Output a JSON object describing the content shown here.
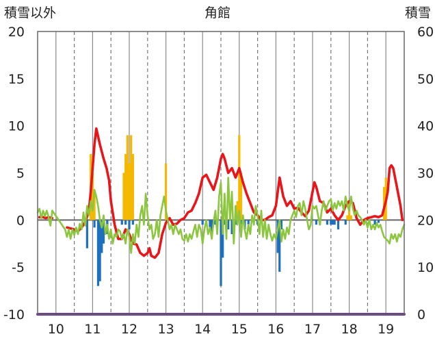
{
  "chart_data": {
    "type": "bar+line",
    "title": "角館",
    "ylabel_left": "積雪以外",
    "ylabel_right": "積雪",
    "ylim_left": [
      -10,
      20
    ],
    "yticks_left": [
      "-10",
      "-5",
      "0",
      "5",
      "10",
      "15",
      "20"
    ],
    "ylim_right": [
      0,
      60
    ],
    "yticks_right": [
      "0",
      "10",
      "20",
      "30",
      "40",
      "50",
      "60"
    ],
    "xlim": [
      9.5,
      19.5
    ],
    "xticks": [
      "10",
      "11",
      "12",
      "13",
      "14",
      "15",
      "16",
      "17",
      "18",
      "19"
    ],
    "grid": "vertical-dashed",
    "legend": "none",
    "series_colors": {
      "red_line": "#e8151b",
      "green_line": "#8cc63f",
      "orange_bars": "#f5b800",
      "blue_bars": "#1f6fbf",
      "purple_line": "#7030a0"
    },
    "series": [
      {
        "type": "line",
        "color_key": "red_line",
        "axis": "left",
        "x": [
          9.55,
          9.65,
          9.72,
          9.8,
          9.9,
          10.05,
          10.3,
          10.5,
          10.6,
          10.7,
          10.8,
          10.9,
          10.95,
          11.0,
          11.05,
          11.1,
          11.2,
          11.3,
          11.38,
          11.45,
          11.5,
          11.6,
          11.7,
          11.8,
          11.9,
          12.0,
          12.1,
          12.2,
          12.3,
          12.4,
          12.5,
          12.55,
          12.6,
          12.7,
          12.8,
          12.9,
          13.0,
          13.1,
          13.2,
          13.3,
          13.4,
          13.5,
          13.6,
          13.7,
          13.8,
          13.9,
          14.0,
          14.1,
          14.2,
          14.3,
          14.4,
          14.5,
          14.55,
          14.6,
          14.7,
          14.8,
          14.9,
          15.0,
          15.1,
          15.2,
          15.3,
          15.4,
          15.5,
          15.6,
          15.7,
          15.8,
          15.9,
          16.0,
          16.05,
          16.1,
          16.2,
          16.3,
          16.4,
          16.5,
          16.6,
          16.7,
          16.8,
          16.9,
          17.0,
          17.05,
          17.1,
          17.2,
          17.3,
          17.4,
          17.5,
          17.6,
          17.7,
          17.8,
          17.9,
          18.0,
          18.1,
          18.2,
          18.3,
          18.4,
          18.5,
          18.6,
          18.7,
          18.8,
          18.9,
          19.0,
          19.05,
          19.1,
          19.15,
          19.2,
          19.3,
          19.4,
          19.45
        ],
        "y": [
          0.3,
          0.3,
          0.2,
          0.3,
          0.2,
          null,
          -0.8,
          -1.0,
          -1.2,
          -0.8,
          -0.2,
          1.0,
          3.0,
          5.5,
          8.0,
          9.7,
          8.0,
          6.5,
          5.5,
          4.2,
          2.0,
          -0.5,
          -2.0,
          -2.0,
          -1.0,
          -1.5,
          -2.5,
          -2.6,
          -3.5,
          -3.8,
          -3.5,
          -3.0,
          -3.8,
          -4.0,
          -3.5,
          -1.5,
          -0.3,
          0.2,
          -0.5,
          -0.4,
          0.0,
          0.2,
          0.8,
          1.0,
          1.8,
          2.8,
          4.5,
          4.8,
          4.0,
          3.2,
          4.5,
          6.5,
          7.0,
          6.5,
          5.0,
          5.5,
          4.5,
          5.5,
          4.0,
          2.8,
          1.8,
          0.8,
          0.5,
          0.0,
          0.0,
          0.3,
          0.5,
          1.5,
          3.0,
          4.5,
          2.5,
          1.5,
          2.0,
          1.2,
          1.3,
          0.8,
          0.4,
          1.0,
          3.0,
          4.0,
          3.5,
          2.0,
          1.8,
          0.8,
          1.2,
          0.5,
          0.0,
          0.5,
          1.5,
          2.0,
          1.8,
          0.2,
          -0.5,
          0.0,
          0.2,
          0.3,
          0.4,
          0.3,
          0.5,
          2.0,
          3.0,
          5.5,
          5.8,
          5.5,
          3.5,
          1.5,
          0.0
        ]
      },
      {
        "type": "line",
        "color_key": "green_line",
        "axis": "left",
        "x": [
          9.5,
          9.55,
          9.6,
          9.65,
          9.7,
          9.75,
          9.8,
          9.85,
          9.9,
          10.25,
          10.3,
          10.35,
          10.4,
          10.45,
          10.5,
          10.55,
          10.6,
          10.65,
          10.7,
          10.75,
          10.8,
          10.85,
          10.9,
          10.95,
          11.0,
          11.05,
          11.1,
          11.15,
          11.2,
          11.25,
          11.3,
          11.35,
          11.4,
          11.45,
          11.5,
          11.55,
          11.6,
          11.65,
          11.7,
          11.75,
          11.8,
          11.85,
          11.9,
          11.95,
          12.0,
          12.05,
          12.1,
          12.15,
          12.2,
          12.25,
          12.3,
          12.35,
          12.4,
          12.45,
          12.5,
          12.55,
          12.6,
          12.65,
          12.7,
          12.75,
          12.8,
          12.85,
          12.9,
          12.95,
          13.0,
          13.05,
          13.1,
          13.15,
          13.2,
          13.25,
          13.3,
          13.35,
          13.4,
          13.45,
          13.5,
          13.55,
          13.6,
          13.65,
          13.7,
          13.75,
          13.8,
          13.85,
          13.9,
          13.95,
          14.0,
          14.05,
          14.1,
          14.15,
          14.2,
          14.25,
          14.3,
          14.35,
          14.4,
          14.45,
          14.5,
          14.55,
          14.6,
          14.65,
          14.7,
          14.75,
          14.8,
          14.85,
          14.9,
          14.95,
          15.0,
          15.05,
          15.1,
          15.15,
          15.2,
          15.25,
          15.3,
          15.35,
          15.4,
          15.45,
          15.5,
          15.55,
          15.6,
          15.65,
          15.7,
          15.75,
          15.8,
          15.85,
          15.9,
          15.95,
          16.0,
          16.05,
          16.1,
          16.15,
          16.2,
          16.25,
          16.3,
          16.35,
          16.4,
          16.45,
          16.5,
          16.55,
          16.6,
          16.65,
          16.7,
          16.75,
          16.8,
          16.85,
          16.9,
          16.95,
          17.0,
          17.05,
          17.1,
          17.15,
          17.2,
          17.25,
          17.3,
          17.35,
          17.4,
          17.45,
          17.5,
          17.55,
          17.6,
          17.65,
          17.7,
          17.75,
          17.8,
          17.85,
          17.9,
          17.95,
          18.0,
          18.05,
          18.1,
          18.15,
          18.2,
          18.25,
          18.3,
          18.35,
          18.4,
          18.45,
          18.5,
          18.55,
          18.6,
          18.65,
          18.7,
          18.75,
          18.8,
          18.85,
          18.9,
          18.95,
          19.0,
          19.05,
          19.1,
          19.15,
          19.2,
          19.25,
          19.3,
          19.35,
          19.4,
          19.45,
          19.5
        ],
        "y": [
          0.8,
          1.2,
          0.2,
          1.0,
          0.4,
          1.0,
          0.3,
          -0.6,
          1.0,
          -1.0,
          -1.8,
          -1.0,
          -2.0,
          -1.0,
          -1.6,
          -0.8,
          -1.5,
          -0.4,
          -1.0,
          0.8,
          -0.6,
          1.5,
          0.5,
          2.0,
          1.0,
          3.2,
          2.5,
          1.5,
          0.0,
          -0.8,
          0.5,
          -1.5,
          -0.5,
          -2.0,
          -1.0,
          -2.5,
          -1.5,
          -1.8,
          -1.0,
          -1.2,
          -2.0,
          -1.5,
          -2.5,
          -1.0,
          -1.8,
          -3.5,
          -1.5,
          -2.5,
          -0.5,
          -1.8,
          0.5,
          1.5,
          -0.5,
          2.8,
          0.5,
          -1.0,
          -0.5,
          -2.0,
          -1.5,
          0.0,
          -1.8,
          0.5,
          1.5,
          2.5,
          1.0,
          0.0,
          -1.0,
          -0.5,
          -1.5,
          -0.5,
          -1.0,
          -1.5,
          -1.0,
          -2.0,
          -2.2,
          -1.5,
          -2.3,
          -1.5,
          -2.0,
          -1.2,
          -0.5,
          -1.8,
          -0.5,
          -1.0,
          -2.5,
          -1.0,
          0.0,
          -1.5,
          -0.8,
          -2.0,
          -0.2,
          1.0,
          -1.5,
          2.5,
          4.0,
          -1.5,
          2.8,
          -2.0,
          4.5,
          0.0,
          3.0,
          -2.5,
          1.5,
          -0.5,
          1.0,
          -1.8,
          0.5,
          -1.0,
          -2.0,
          -0.5,
          -1.5,
          0.5,
          -0.5,
          1.5,
          0.5,
          -1.5,
          1.0,
          -1.8,
          0.0,
          -2.0,
          -0.5,
          -1.5,
          -2.2,
          -1.5,
          -2.0,
          -1.0,
          0.0,
          -2.3,
          -1.0,
          -2.0,
          -0.8,
          -1.5,
          0.0,
          0.5,
          1.0,
          0.3,
          1.5,
          1.8,
          0.5,
          2.0,
          1.2,
          0.0,
          -1.0,
          -0.5,
          1.5,
          1.2,
          1.5,
          0.5,
          -0.5,
          1.0,
          2.0,
          1.0,
          1.5,
          2.0,
          2.2,
          1.0,
          1.8,
          1.2,
          2.0,
          1.5,
          2.0,
          1.0,
          2.5,
          1.5,
          1.0,
          2.5,
          1.2,
          0.5,
          1.0,
          0.5,
          0.3,
          0.0,
          -0.5,
          0.0,
          -0.8,
          0.0,
          -1.0,
          -0.5,
          -1.0,
          -0.3,
          -0.8,
          -0.5,
          -1.2,
          -1.8,
          -2.0,
          -2.2,
          -2.5,
          -1.5,
          -2.0,
          -1.5,
          -2.3,
          -1.5,
          -1.8,
          -1.0,
          -0.5
        ]
      },
      {
        "type": "bar",
        "color_key": "orange_bars",
        "axis": "left",
        "x": [
          10.95,
          11.0,
          11.05,
          11.85,
          11.9,
          11.95,
          12.0,
          12.05,
          12.1,
          13.0,
          14.55,
          14.95,
          15.0,
          15.05,
          17.95,
          18.0,
          18.05,
          18.95,
          19.0
        ],
        "y": [
          7.0,
          5.0,
          3.0,
          5.0,
          7.0,
          9.0,
          6.0,
          9.0,
          7.0,
          6.0,
          0.5,
          2.0,
          9.0,
          5.0,
          0.5,
          2.0,
          0.5,
          3.5,
          4.5
        ]
      },
      {
        "type": "bar",
        "color_key": "blue_bars",
        "axis": "left",
        "x": [
          10.85,
          11.05,
          11.15,
          11.2,
          11.25,
          11.3,
          11.4,
          11.8,
          11.9,
          12.0,
          12.1,
          14.0,
          14.2,
          14.25,
          14.35,
          14.5,
          14.55,
          14.6,
          14.7,
          14.8,
          14.9,
          15.05,
          15.15,
          15.25,
          15.5,
          16.05,
          16.1,
          16.15,
          17.1,
          17.2,
          17.4,
          17.5,
          17.55,
          17.6,
          17.7,
          17.9,
          18.7,
          18.8
        ],
        "y": [
          -3.0,
          -0.8,
          -7.0,
          -6.5,
          -3.5,
          -2.5,
          -1.5,
          -0.5,
          -0.5,
          -1.0,
          -0.5,
          -0.5,
          -0.8,
          -1.5,
          -0.5,
          -7.0,
          -4.0,
          -0.5,
          -1.0,
          -1.5,
          -0.5,
          -0.5,
          -1.0,
          -0.5,
          -0.5,
          -3.5,
          -5.5,
          -1.0,
          -0.5,
          -0.5,
          -0.5,
          -0.5,
          -0.5,
          -0.5,
          -1.0,
          -0.5,
          -0.5,
          -0.3
        ]
      },
      {
        "type": "line",
        "color_key": "purple_line",
        "axis": "right",
        "x": [
          9.5,
          19.5
        ],
        "y": [
          0,
          0
        ]
      }
    ]
  }
}
